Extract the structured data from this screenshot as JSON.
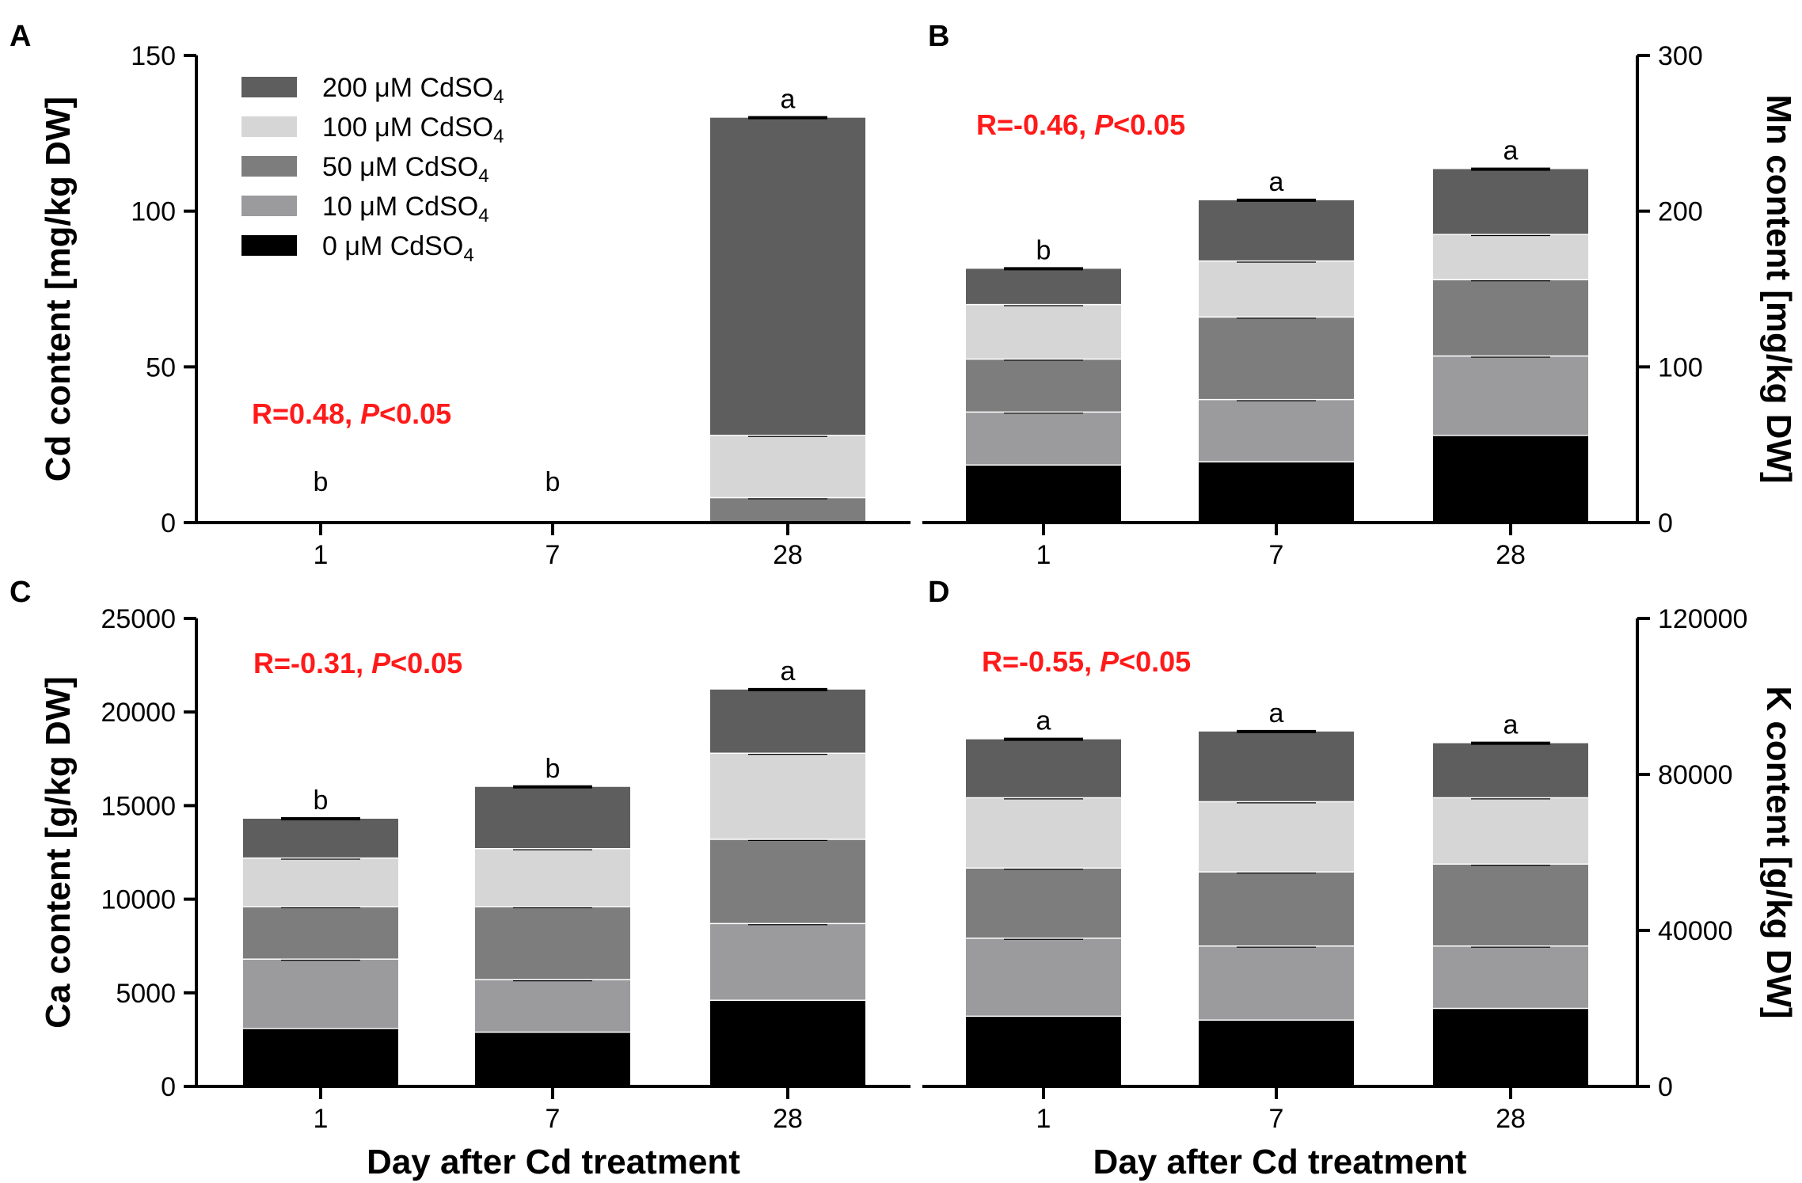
{
  "colors": {
    "s0": "#000000",
    "s10": "#9b9b9e",
    "s50": "#7d7d7d",
    "s100": "#d6d6d6",
    "s200": "#5e5e5e",
    "stat": "#ff1a1a"
  },
  "legend": [
    {
      "key": "s200",
      "conc": "200 μM CdSO",
      "sub": "4"
    },
    {
      "key": "s100",
      "conc": "100 μM CdSO",
      "sub": "4"
    },
    {
      "key": "s50",
      "conc": "50 μM CdSO",
      "sub": "4"
    },
    {
      "key": "s10",
      "conc": "10 μM CdSO",
      "sub": "4"
    },
    {
      "key": "s0",
      "conc": "0 μM CdSO",
      "sub": "4"
    }
  ],
  "xlabel": "Day after Cd treatment",
  "chart_data": [
    {
      "panel": "A",
      "type": "bar",
      "stacked": true,
      "ylabel": "Cd content [mg/kg DW]",
      "yaxis_side": "left",
      "ylim": [
        0,
        150
      ],
      "yticks": [
        0,
        50,
        100,
        150
      ],
      "categories": [
        "1",
        "7",
        "28"
      ],
      "series": [
        {
          "name": "0 μM CdSO4",
          "key": "s0",
          "values": [
            0,
            0,
            0
          ]
        },
        {
          "name": "10 μM CdSO4",
          "key": "s10",
          "values": [
            0,
            0,
            0
          ]
        },
        {
          "name": "50 μM CdSO4",
          "key": "s50",
          "values": [
            0,
            0,
            8
          ]
        },
        {
          "name": "100 μM CdSO4",
          "key": "s100",
          "values": [
            0,
            0,
            20
          ]
        },
        {
          "name": "200 μM CdSO4",
          "key": "s200",
          "values": [
            0,
            0,
            102
          ]
        }
      ],
      "sig": [
        "b",
        "b",
        "a"
      ],
      "stat": {
        "r": "R=0.48, ",
        "p": "P",
        "rest": "<0.05"
      }
    },
    {
      "panel": "B",
      "type": "bar",
      "stacked": true,
      "ylabel": "Mn content [mg/kg DW]",
      "yaxis_side": "right",
      "ylim": [
        0,
        300
      ],
      "yticks": [
        0,
        100,
        200,
        300
      ],
      "categories": [
        "1",
        "7",
        "28"
      ],
      "series": [
        {
          "name": "0 μM CdSO4",
          "key": "s0",
          "values": [
            37,
            39,
            56
          ]
        },
        {
          "name": "10 μM CdSO4",
          "key": "s10",
          "values": [
            34,
            40,
            51
          ]
        },
        {
          "name": "50 μM CdSO4",
          "key": "s50",
          "values": [
            34,
            53,
            49
          ]
        },
        {
          "name": "100 μM CdSO4",
          "key": "s100",
          "values": [
            35,
            36,
            29
          ]
        },
        {
          "name": "200 μM CdSO4",
          "key": "s200",
          "values": [
            23,
            39,
            42
          ]
        }
      ],
      "sig": [
        "b",
        "a",
        "a"
      ],
      "stat": {
        "r": "R=-0.46, ",
        "p": "P",
        "rest": "<0.05"
      }
    },
    {
      "panel": "C",
      "type": "bar",
      "stacked": true,
      "ylabel": "Ca content [g/kg DW]",
      "yaxis_side": "left",
      "ylim": [
        0,
        25000
      ],
      "yticks": [
        0,
        5000,
        10000,
        15000,
        20000,
        25000
      ],
      "categories": [
        "1",
        "7",
        "28"
      ],
      "series": [
        {
          "name": "0 μM CdSO4",
          "key": "s0",
          "values": [
            3100,
            2900,
            4600
          ]
        },
        {
          "name": "10 μM CdSO4",
          "key": "s10",
          "values": [
            3700,
            2800,
            4100
          ]
        },
        {
          "name": "50 μM CdSO4",
          "key": "s50",
          "values": [
            2800,
            3900,
            4500
          ]
        },
        {
          "name": "100 μM CdSO4",
          "key": "s100",
          "values": [
            2600,
            3100,
            4600
          ]
        },
        {
          "name": "200 μM CdSO4",
          "key": "s200",
          "values": [
            2100,
            3300,
            3400
          ]
        }
      ],
      "sig": [
        "b",
        "b",
        "a"
      ],
      "stat": {
        "r": "R=-0.31, ",
        "p": "P",
        "rest": "<0.05"
      }
    },
    {
      "panel": "D",
      "type": "bar",
      "stacked": true,
      "ylabel": "K content [g/kg DW]",
      "yaxis_side": "right",
      "ylim": [
        0,
        120000
      ],
      "yticks": [
        0,
        40000,
        80000,
        120000
      ],
      "categories": [
        "1",
        "7",
        "28"
      ],
      "series": [
        {
          "name": "0 μM CdSO4",
          "key": "s0",
          "values": [
            18000,
            17000,
            20000
          ]
        },
        {
          "name": "10 μM CdSO4",
          "key": "s10",
          "values": [
            20000,
            19000,
            16000
          ]
        },
        {
          "name": "50 μM CdSO4",
          "key": "s50",
          "values": [
            18000,
            19000,
            21000
          ]
        },
        {
          "name": "100 μM CdSO4",
          "key": "s100",
          "values": [
            18000,
            18000,
            17000
          ]
        },
        {
          "name": "200 μM CdSO4",
          "key": "s200",
          "values": [
            15000,
            18000,
            14000
          ]
        }
      ],
      "sig": [
        "a",
        "a",
        "a"
      ],
      "stat": {
        "r": "R=-0.55, ",
        "p": "P",
        "rest": "<0.05"
      }
    }
  ]
}
